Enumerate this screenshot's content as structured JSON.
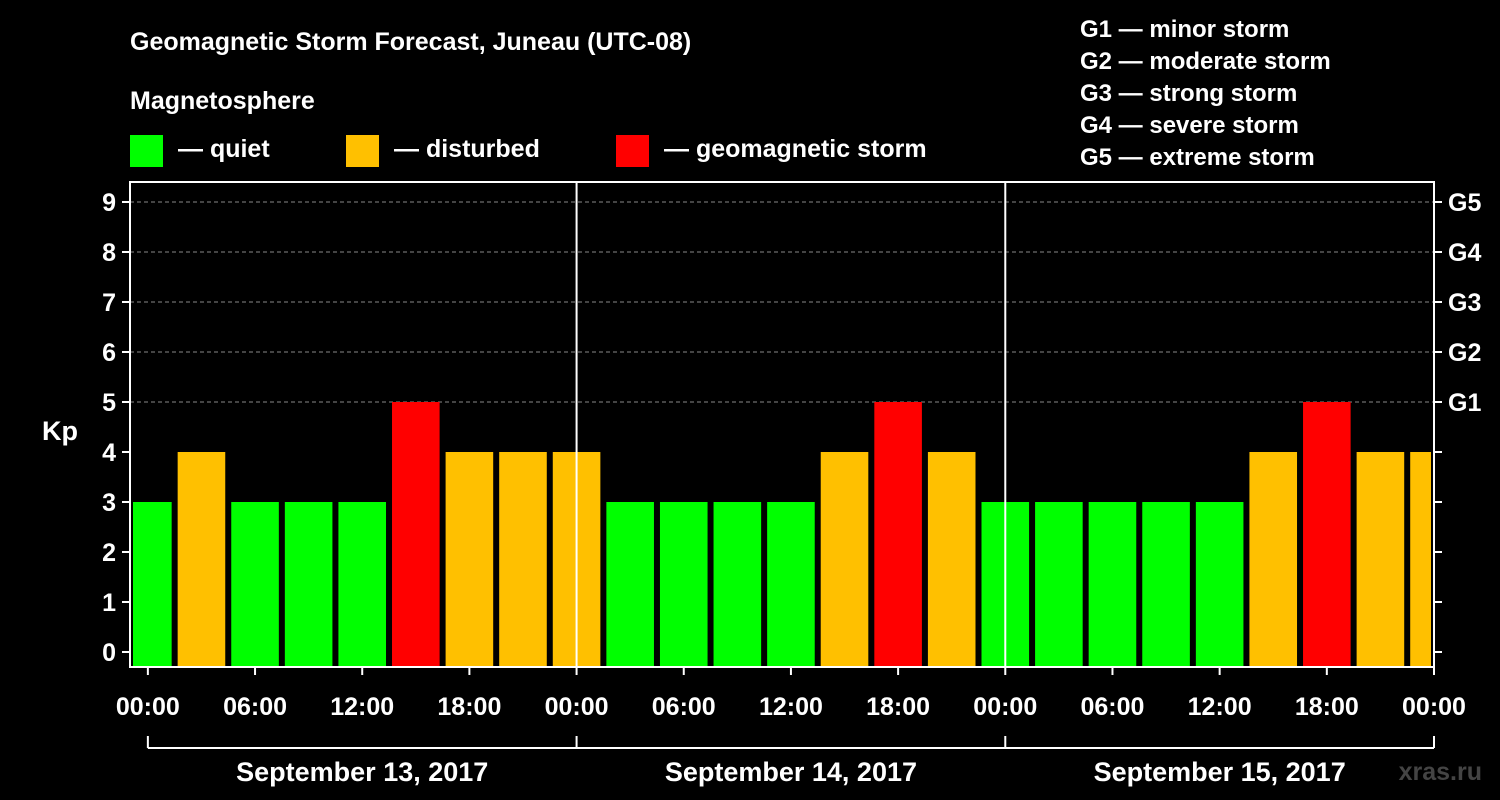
{
  "chart_data": {
    "type": "bar",
    "title": "Geomagnetic Storm Forecast, Juneau (UTC-08)",
    "legend_title": "Magnetosphere",
    "legend": [
      {
        "label": "— quiet",
        "color": "#00ff00"
      },
      {
        "label": "— disturbed",
        "color": "#ffc000"
      },
      {
        "label": "— geomagnetic storm",
        "color": "#ff0000"
      }
    ],
    "storm_levels": [
      "G1 — minor storm",
      "G2 — moderate storm",
      "G3 — strong storm",
      "G4 — severe storm",
      "G5 — extreme storm"
    ],
    "ylabel": "Kp",
    "ylim": [
      0,
      9
    ],
    "y_ticks": [
      "0",
      "1",
      "2",
      "3",
      "4",
      "5",
      "6",
      "7",
      "8",
      "9"
    ],
    "right_ticks": [
      {
        "value": 5,
        "label": "G1"
      },
      {
        "value": 6,
        "label": "G2"
      },
      {
        "value": 7,
        "label": "G3"
      },
      {
        "value": 8,
        "label": "G4"
      },
      {
        "value": 9,
        "label": "G5"
      }
    ],
    "x_range_hours": [
      -1,
      72
    ],
    "x_tick_labels": [
      "00:00",
      "06:00",
      "12:00",
      "18:00",
      "00:00",
      "06:00",
      "12:00",
      "18:00",
      "00:00",
      "06:00",
      "12:00",
      "18:00",
      "00:00"
    ],
    "days": [
      "September 13, 2017",
      "September 14, 2017",
      "September 15, 2017"
    ],
    "bars": [
      {
        "start": -1,
        "end": 1.5,
        "kp": 3,
        "level": "quiet"
      },
      {
        "start": 1.5,
        "end": 4.5,
        "kp": 4,
        "level": "disturbed"
      },
      {
        "start": 4.5,
        "end": 7.5,
        "kp": 3,
        "level": "quiet"
      },
      {
        "start": 7.5,
        "end": 10.5,
        "kp": 3,
        "level": "quiet"
      },
      {
        "start": 10.5,
        "end": 13.5,
        "kp": 3,
        "level": "quiet"
      },
      {
        "start": 13.5,
        "end": 16.5,
        "kp": 5,
        "level": "storm"
      },
      {
        "start": 16.5,
        "end": 19.5,
        "kp": 4,
        "level": "disturbed"
      },
      {
        "start": 19.5,
        "end": 22.5,
        "kp": 4,
        "level": "disturbed"
      },
      {
        "start": 22.5,
        "end": 25.5,
        "kp": 4,
        "level": "disturbed"
      },
      {
        "start": 25.5,
        "end": 28.5,
        "kp": 3,
        "level": "quiet"
      },
      {
        "start": 28.5,
        "end": 31.5,
        "kp": 3,
        "level": "quiet"
      },
      {
        "start": 31.5,
        "end": 34.5,
        "kp": 3,
        "level": "quiet"
      },
      {
        "start": 34.5,
        "end": 37.5,
        "kp": 3,
        "level": "quiet"
      },
      {
        "start": 37.5,
        "end": 40.5,
        "kp": 4,
        "level": "disturbed"
      },
      {
        "start": 40.5,
        "end": 43.5,
        "kp": 5,
        "level": "storm"
      },
      {
        "start": 43.5,
        "end": 46.5,
        "kp": 4,
        "level": "disturbed"
      },
      {
        "start": 46.5,
        "end": 49.5,
        "kp": 3,
        "level": "quiet"
      },
      {
        "start": 49.5,
        "end": 52.5,
        "kp": 3,
        "level": "quiet"
      },
      {
        "start": 52.5,
        "end": 55.5,
        "kp": 3,
        "level": "quiet"
      },
      {
        "start": 55.5,
        "end": 58.5,
        "kp": 3,
        "level": "quiet"
      },
      {
        "start": 58.5,
        "end": 61.5,
        "kp": 3,
        "level": "quiet"
      },
      {
        "start": 61.5,
        "end": 64.5,
        "kp": 4,
        "level": "disturbed"
      },
      {
        "start": 64.5,
        "end": 67.5,
        "kp": 5,
        "level": "storm"
      },
      {
        "start": 67.5,
        "end": 70.5,
        "kp": 4,
        "level": "disturbed"
      },
      {
        "start": 70.5,
        "end": 72,
        "kp": 4,
        "level": "disturbed"
      }
    ],
    "colors": {
      "quiet": "#00ff00",
      "disturbed": "#ffc000",
      "storm": "#ff0000"
    },
    "watermark": "xras.ru"
  }
}
